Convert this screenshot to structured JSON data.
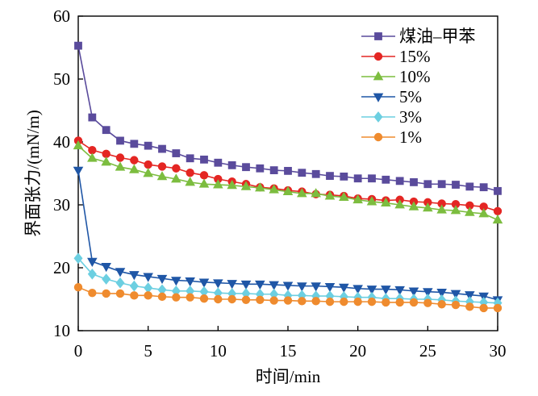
{
  "chart_data": {
    "type": "line",
    "xlabel": "时间/min",
    "ylabel": "界面张力/(mN/m)",
    "xlim": [
      0,
      30
    ],
    "ylim": [
      10,
      60
    ],
    "xticks": [
      0,
      5,
      10,
      15,
      20,
      25,
      30
    ],
    "yticks": [
      10,
      20,
      30,
      40,
      50,
      60
    ],
    "grid": false,
    "legend": "top-right",
    "x": [
      0,
      1,
      2,
      3,
      4,
      5,
      6,
      7,
      8,
      9,
      10,
      11,
      12,
      13,
      14,
      15,
      16,
      17,
      18,
      19,
      20,
      21,
      22,
      23,
      24,
      25,
      26,
      27,
      28,
      29,
      30
    ],
    "series": [
      {
        "name": "煤油–甲苯",
        "color": "#5a4b9c",
        "marker": "square",
        "values": [
          55.3,
          43.9,
          41.9,
          40.2,
          39.7,
          39.4,
          38.9,
          38.2,
          37.4,
          37.2,
          36.7,
          36.3,
          36.0,
          35.8,
          35.5,
          35.4,
          35.1,
          34.9,
          34.6,
          34.5,
          34.2,
          34.2,
          34.0,
          33.8,
          33.6,
          33.3,
          33.3,
          33.2,
          32.9,
          32.8,
          32.2
        ]
      },
      {
        "name": "15%",
        "color": "#e42623",
        "marker": "circle",
        "values": [
          40.2,
          38.7,
          38.1,
          37.5,
          37.1,
          36.4,
          36.1,
          35.8,
          35.1,
          34.7,
          34.1,
          33.7,
          33.3,
          32.8,
          32.6,
          32.3,
          32.1,
          31.7,
          31.6,
          31.4,
          31.0,
          30.9,
          30.7,
          30.8,
          30.5,
          30.4,
          30.2,
          30.1,
          29.9,
          29.7,
          29.0
        ]
      },
      {
        "name": "10%",
        "color": "#7cbd3f",
        "marker": "triangle-up",
        "values": [
          39.4,
          37.4,
          36.8,
          36.0,
          35.6,
          35.0,
          34.5,
          34.1,
          33.6,
          33.3,
          33.2,
          33.1,
          32.9,
          32.7,
          32.4,
          32.1,
          31.8,
          31.8,
          31.4,
          31.2,
          30.8,
          30.5,
          30.3,
          30.0,
          29.7,
          29.5,
          29.2,
          29.1,
          28.8,
          28.6,
          27.6
        ]
      },
      {
        "name": "5%",
        "color": "#1f56a6",
        "marker": "triangle-down",
        "values": [
          35.5,
          21.0,
          20.2,
          19.4,
          18.9,
          18.6,
          18.3,
          18.0,
          17.9,
          17.7,
          17.6,
          17.5,
          17.4,
          17.4,
          17.3,
          17.2,
          17.1,
          17.1,
          17.0,
          16.9,
          16.7,
          16.6,
          16.6,
          16.5,
          16.3,
          16.2,
          16.1,
          15.9,
          15.7,
          15.5,
          14.9
        ]
      },
      {
        "name": "3%",
        "color": "#6ccfe1",
        "marker": "diamond",
        "values": [
          21.5,
          19.0,
          18.2,
          17.6,
          17.1,
          16.8,
          16.5,
          16.3,
          16.3,
          16.2,
          16.0,
          15.9,
          15.9,
          15.8,
          15.8,
          15.6,
          15.6,
          15.5,
          15.5,
          15.4,
          15.3,
          15.3,
          15.1,
          15.1,
          15.0,
          15.0,
          14.9,
          14.7,
          14.6,
          14.5,
          14.4
        ]
      },
      {
        "name": "1%",
        "color": "#ef8b2e",
        "marker": "circle",
        "values": [
          16.9,
          16.0,
          15.9,
          15.9,
          15.6,
          15.6,
          15.4,
          15.3,
          15.3,
          15.1,
          15.0,
          15.0,
          14.9,
          14.9,
          14.8,
          14.8,
          14.7,
          14.7,
          14.6,
          14.6,
          14.6,
          14.6,
          14.5,
          14.5,
          14.5,
          14.4,
          14.2,
          14.1,
          13.8,
          13.6,
          13.6
        ]
      }
    ]
  }
}
